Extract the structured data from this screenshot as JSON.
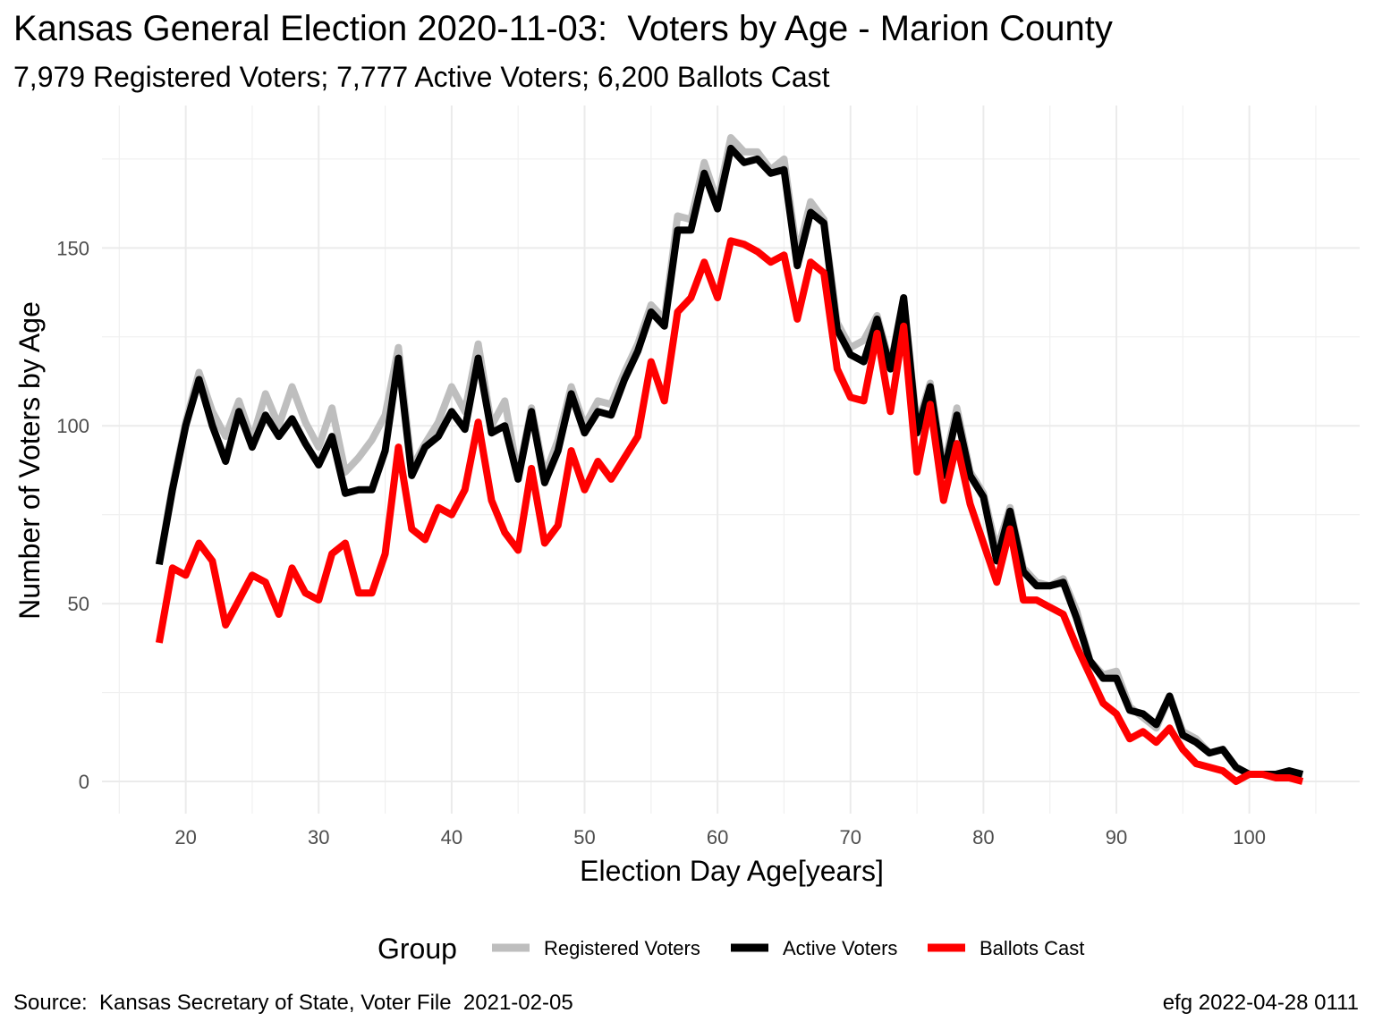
{
  "chart_data": {
    "type": "line",
    "title": "Kansas General Election 2020-11-03:  Voters by Age - Marion County",
    "subtitle": "7,979 Registered Voters; 7,777 Active Voters; 6,200 Ballots Cast",
    "xlabel": "Election Day Age[years]",
    "ylabel": "Number of Voters by Age",
    "xlim": [
      18,
      104
    ],
    "ylim": [
      0,
      181
    ],
    "x_ticks": [
      20,
      30,
      40,
      50,
      60,
      70,
      80,
      90,
      100
    ],
    "y_ticks": [
      0,
      50,
      100,
      150
    ],
    "grid": true,
    "legend": {
      "title": "Group",
      "position": "bottom"
    },
    "caption_left": "Source:  Kansas Secretary of State, Voter File  2021-02-05",
    "caption_right": "efg 2022-04-28 0111",
    "x": [
      18,
      19,
      20,
      21,
      22,
      23,
      24,
      25,
      26,
      27,
      28,
      29,
      30,
      31,
      32,
      33,
      34,
      35,
      36,
      37,
      38,
      39,
      40,
      41,
      42,
      43,
      44,
      45,
      46,
      47,
      48,
      49,
      50,
      51,
      52,
      53,
      54,
      55,
      56,
      57,
      58,
      59,
      60,
      61,
      62,
      63,
      64,
      65,
      66,
      67,
      68,
      69,
      70,
      71,
      72,
      73,
      74,
      75,
      76,
      77,
      78,
      79,
      80,
      81,
      82,
      83,
      84,
      85,
      86,
      87,
      88,
      89,
      90,
      91,
      92,
      93,
      94,
      95,
      96,
      97,
      98,
      99,
      100,
      101,
      102,
      103,
      104
    ],
    "series": [
      {
        "name": "Registered Voters",
        "color": "#bebebe",
        "values": [
          61,
          83,
          101,
          115,
          104,
          97,
          107,
          96,
          109,
          100,
          111,
          101,
          94,
          105,
          87,
          91,
          96,
          103,
          122,
          88,
          95,
          101,
          111,
          104,
          123,
          100,
          107,
          86,
          105,
          86,
          96,
          111,
          100,
          107,
          106,
          115,
          123,
          134,
          130,
          159,
          158,
          174,
          163,
          181,
          177,
          177,
          172,
          175,
          148,
          163,
          158,
          129,
          122,
          124,
          131,
          117,
          136,
          100,
          112,
          88,
          105,
          87,
          81,
          65,
          77,
          60,
          56,
          55,
          57,
          48,
          34,
          30,
          31,
          21,
          18,
          15,
          24,
          14,
          12,
          8,
          9,
          4,
          2,
          2,
          2,
          3,
          2
        ]
      },
      {
        "name": "Active Voters",
        "color": "#000000",
        "values": [
          61,
          82,
          100,
          113,
          100,
          90,
          104,
          94,
          103,
          97,
          102,
          95,
          89,
          97,
          81,
          82,
          82,
          93,
          119,
          86,
          94,
          97,
          104,
          99,
          119,
          98,
          100,
          85,
          104,
          84,
          93,
          109,
          98,
          104,
          103,
          113,
          121,
          132,
          128,
          155,
          155,
          171,
          161,
          178,
          174,
          175,
          171,
          172,
          145,
          160,
          157,
          127,
          120,
          118,
          130,
          116,
          136,
          98,
          111,
          86,
          103,
          86,
          80,
          62,
          76,
          59,
          55,
          55,
          56,
          46,
          34,
          29,
          29,
          20,
          19,
          16,
          24,
          13,
          11,
          8,
          9,
          4,
          2,
          2,
          2,
          3,
          2
        ]
      },
      {
        "name": "Ballots Cast",
        "color": "#ff0000",
        "values": [
          39,
          60,
          58,
          67,
          62,
          44,
          51,
          58,
          56,
          47,
          60,
          53,
          51,
          64,
          67,
          53,
          53,
          64,
          94,
          71,
          68,
          77,
          75,
          82,
          101,
          79,
          70,
          65,
          88,
          67,
          72,
          93,
          82,
          90,
          85,
          91,
          97,
          118,
          107,
          132,
          136,
          146,
          136,
          152,
          151,
          149,
          146,
          148,
          130,
          146,
          143,
          116,
          108,
          107,
          126,
          104,
          128,
          87,
          106,
          79,
          95,
          78,
          67,
          56,
          71,
          51,
          51,
          49,
          47,
          38,
          30,
          22,
          19,
          12,
          14,
          11,
          15,
          9,
          5,
          4,
          3,
          0,
          2,
          2,
          1,
          1,
          0
        ]
      }
    ]
  }
}
